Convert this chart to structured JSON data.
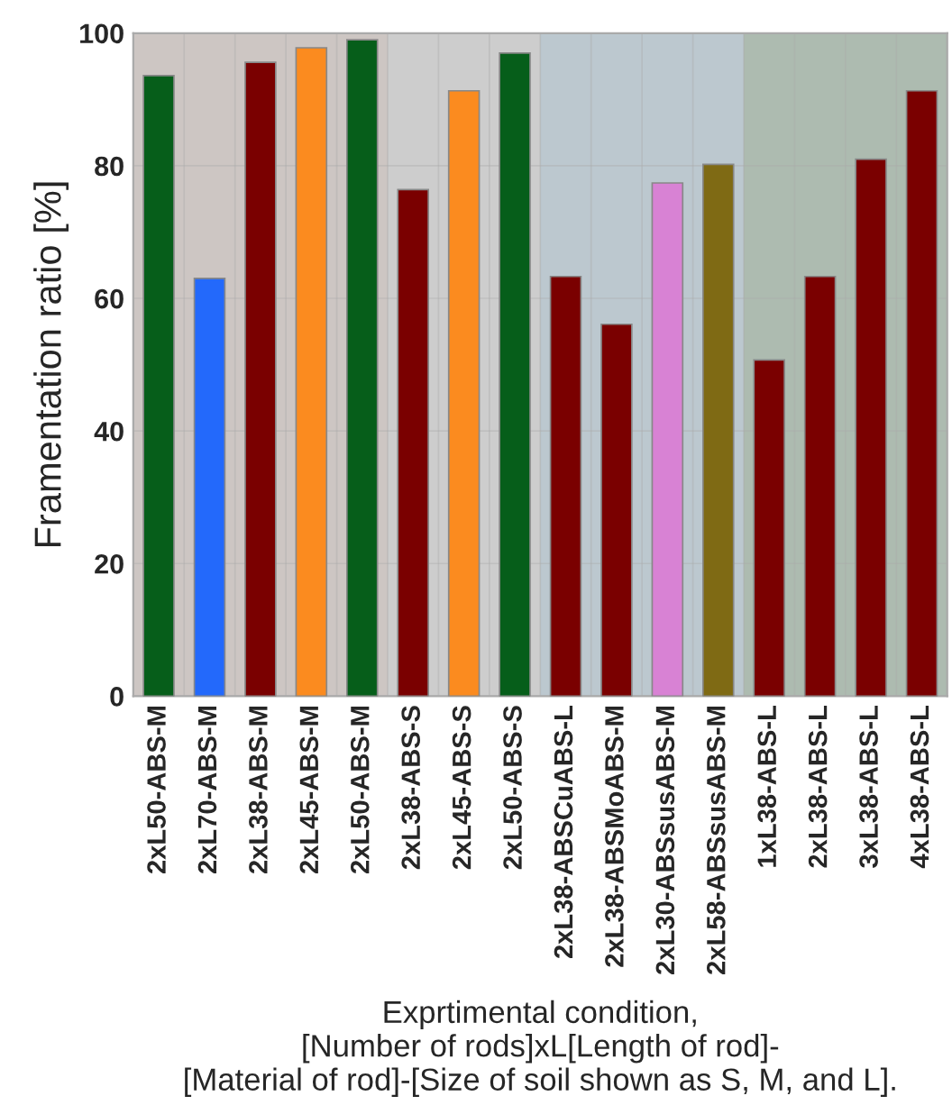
{
  "chart_data": {
    "type": "bar",
    "ylabel": "Framentation ratio [%]",
    "xlabel": "Exprtimental condition,\n[Number of rods]xL[Length of rod]-\n[Material of rod]-[Size of soil shown as S, M, and L].",
    "categories": [
      "2xL50-ABS-M",
      "2xL70-ABS-M",
      "2xL38-ABS-M",
      "2xL45-ABS-M",
      "2xL50-ABS-M",
      "2xL38-ABS-S",
      "2xL45-ABS-S",
      "2xL50-ABS-S",
      "2xL38-ABSCuABS-L",
      "2xL38-ABSMoABS-M",
      "2xL30-ABSsusABS-M",
      "2xL58-ABSsusABS-M",
      "1xL38-ABS-L",
      "2xL38-ABS-L",
      "3xL38-ABS-L",
      "4xL38-ABS-L"
    ],
    "values": [
      93.6,
      63.0,
      95.6,
      97.8,
      99.0,
      76.4,
      91.3,
      97.0,
      63.3,
      56.1,
      77.4,
      80.2,
      50.7,
      63.3,
      81.0,
      91.3
    ],
    "colors": [
      "#065e1a",
      "#2369fb",
      "#7a0000",
      "#fb8b1f",
      "#065e1a",
      "#7a0000",
      "#fb8b1f",
      "#065e1a",
      "#7a0000",
      "#7a0000",
      "#d882d4",
      "#7f6a14",
      "#7a0000",
      "#7a0000",
      "#7a0000",
      "#7a0000"
    ],
    "bands": [
      {
        "axis": "x",
        "from": "2xL38-ABS-S",
        "to": "2xL50-ABS-S",
        "color": "#cdcdcd"
      },
      {
        "axis": "x",
        "from": "2xL38-ABSCuABS-L",
        "to": "2xL58-ABSsusABS-M",
        "color": "#bcc8cf"
      },
      {
        "axis": "x",
        "from": "1xL38-ABS-L",
        "to": "4xL38-ABS-L",
        "color": "#adbbb0"
      }
    ],
    "ylim": [
      0,
      100
    ],
    "yticks": [
      0,
      20,
      40,
      60,
      80,
      100
    ],
    "grid": true
  }
}
